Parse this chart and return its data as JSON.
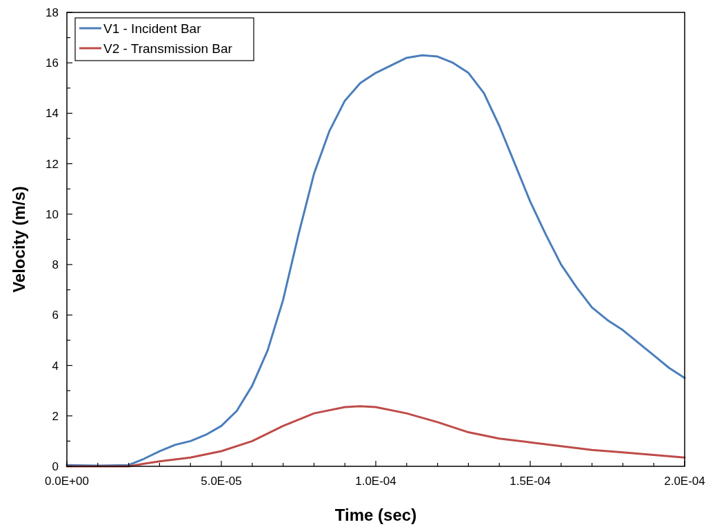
{
  "chart_data": {
    "type": "line",
    "xlabel": "Time (sec)",
    "ylabel": "Velocity (m/s)",
    "xlim": [
      0,
      0.0002
    ],
    "ylim": [
      0,
      18
    ],
    "xticks": [
      {
        "value": 0,
        "label": "0.0E+00"
      },
      {
        "value": 1e-05,
        "label": null
      },
      {
        "value": 2e-05,
        "label": null
      },
      {
        "value": 3e-05,
        "label": null
      },
      {
        "value": 4e-05,
        "label": null
      },
      {
        "value": 5e-05,
        "label": "5.0E-05"
      },
      {
        "value": 6e-05,
        "label": null
      },
      {
        "value": 7e-05,
        "label": null
      },
      {
        "value": 8e-05,
        "label": null
      },
      {
        "value": 9e-05,
        "label": null
      },
      {
        "value": 0.0001,
        "label": "1.0E-04"
      },
      {
        "value": 0.00011,
        "label": null
      },
      {
        "value": 0.00012,
        "label": null
      },
      {
        "value": 0.00013,
        "label": null
      },
      {
        "value": 0.00014,
        "label": null
      },
      {
        "value": 0.00015,
        "label": "1.5E-04"
      },
      {
        "value": 0.00016,
        "label": null
      },
      {
        "value": 0.00017,
        "label": null
      },
      {
        "value": 0.00018,
        "label": null
      },
      {
        "value": 0.00019,
        "label": null
      },
      {
        "value": 0.0002,
        "label": "2.0E-04"
      }
    ],
    "yticks": [
      0,
      {
        "value": 1,
        "label": null
      },
      2,
      {
        "value": 3,
        "label": null
      },
      4,
      {
        "value": 5,
        "label": null
      },
      6,
      {
        "value": 7,
        "label": null
      },
      8,
      {
        "value": 9,
        "label": null
      },
      10,
      {
        "value": 11,
        "label": null
      },
      12,
      {
        "value": 13,
        "label": null
      },
      14,
      {
        "value": 15,
        "label": null
      },
      16,
      {
        "value": 17,
        "label": null
      },
      18
    ],
    "grid": false,
    "legend": "top left",
    "marker": "none",
    "line_style": "solid",
    "series": [
      {
        "name": "V1 - Incident Bar",
        "color": "#4a7ebb",
        "x": [
          0,
          1e-05,
          2e-05,
          2.5e-05,
          3e-05,
          3.5e-05,
          4e-05,
          4.5e-05,
          5e-05,
          5.5e-05,
          6e-05,
          6.5e-05,
          7e-05,
          7.5e-05,
          8e-05,
          8.5e-05,
          9e-05,
          9.5e-05,
          0.0001,
          0.000105,
          0.00011,
          0.000115,
          0.00012,
          0.000125,
          0.00013,
          0.000135,
          0.00014,
          0.000145,
          0.00015,
          0.000155,
          0.00016,
          0.000165,
          0.00017,
          0.000175,
          0.00018,
          0.000185,
          0.00019,
          0.000195,
          0.0002
        ],
        "values": [
          0.05,
          0.03,
          0.05,
          0.3,
          0.6,
          0.85,
          1.0,
          1.25,
          1.6,
          2.2,
          3.2,
          4.6,
          6.6,
          9.2,
          11.6,
          13.3,
          14.5,
          15.2,
          15.6,
          15.9,
          16.2,
          16.3,
          16.25,
          16.0,
          15.6,
          14.8,
          13.5,
          12.0,
          10.5,
          9.2,
          8.0,
          7.1,
          6.3,
          5.8,
          5.4,
          4.9,
          4.4,
          3.9,
          3.5
        ]
      },
      {
        "name": "V2 - Transmission Bar",
        "color": "#be4b48",
        "x": [
          0,
          2e-05,
          2.5e-05,
          3e-05,
          4e-05,
          5e-05,
          6e-05,
          7e-05,
          8e-05,
          9e-05,
          9.5e-05,
          0.0001,
          0.00011,
          0.00012,
          0.00013,
          0.00014,
          0.00015,
          0.00016,
          0.00017,
          0.00018,
          0.00019,
          0.0002
        ],
        "values": [
          0,
          0,
          0.1,
          0.2,
          0.35,
          0.6,
          1.0,
          1.6,
          2.1,
          2.35,
          2.38,
          2.35,
          2.1,
          1.75,
          1.35,
          1.1,
          0.95,
          0.8,
          0.65,
          0.55,
          0.45,
          0.35
        ]
      }
    ]
  }
}
